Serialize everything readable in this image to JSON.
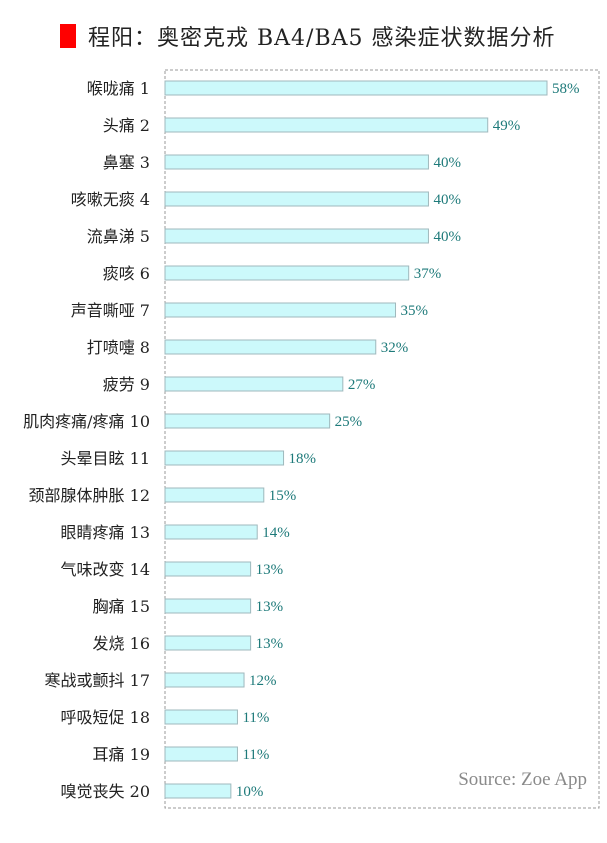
{
  "title": "程阳：奥密克戎 BA4/BA5 感染症状数据分析",
  "colors": {
    "title_mark": "#ff0000",
    "bar_fill": "#ccf9fb",
    "bar_stroke": "#9fb8bc",
    "value_label": "#1e7a7a",
    "category_label": "#222222",
    "plot_border": "#9a9a9a",
    "source": "#8a8a8a"
  },
  "source_note": "Source: Zoe App",
  "chart_data": {
    "type": "bar",
    "orientation": "horizontal",
    "title": "程阳：奥密克戎 BA4/BA5 感染症状数据分析",
    "categories": [
      "喉咙痛 1",
      "头痛 2",
      "鼻塞 3",
      "咳嗽无痰 4",
      "流鼻涕 5",
      "痰咳 6",
      "声音嘶哑 7",
      "打喷嚏 8",
      "疲劳 9",
      "肌肉疼痛/疼痛 10",
      "头晕目眩 11",
      "颈部腺体肿胀 12",
      "眼睛疼痛 13",
      "气味改变 14",
      "胸痛 15",
      "发烧 16",
      "寒战或颤抖 17",
      "呼吸短促 18",
      "耳痛 19",
      "嗅觉丧失 20"
    ],
    "values": [
      58,
      49,
      40,
      40,
      40,
      37,
      35,
      32,
      27,
      25,
      18,
      15,
      14,
      13,
      13,
      13,
      12,
      11,
      11,
      10
    ],
    "value_labels": [
      "58%",
      "49%",
      "40%",
      "40%",
      "40%",
      "37%",
      "35%",
      "32%",
      "27%",
      "25%",
      "18%",
      "15%",
      "14%",
      "13%",
      "13%",
      "13%",
      "12%",
      "11%",
      "11%",
      "10%"
    ],
    "xlim": [
      0,
      70
    ],
    "grid": false,
    "legend": "none",
    "border": "dashed"
  }
}
